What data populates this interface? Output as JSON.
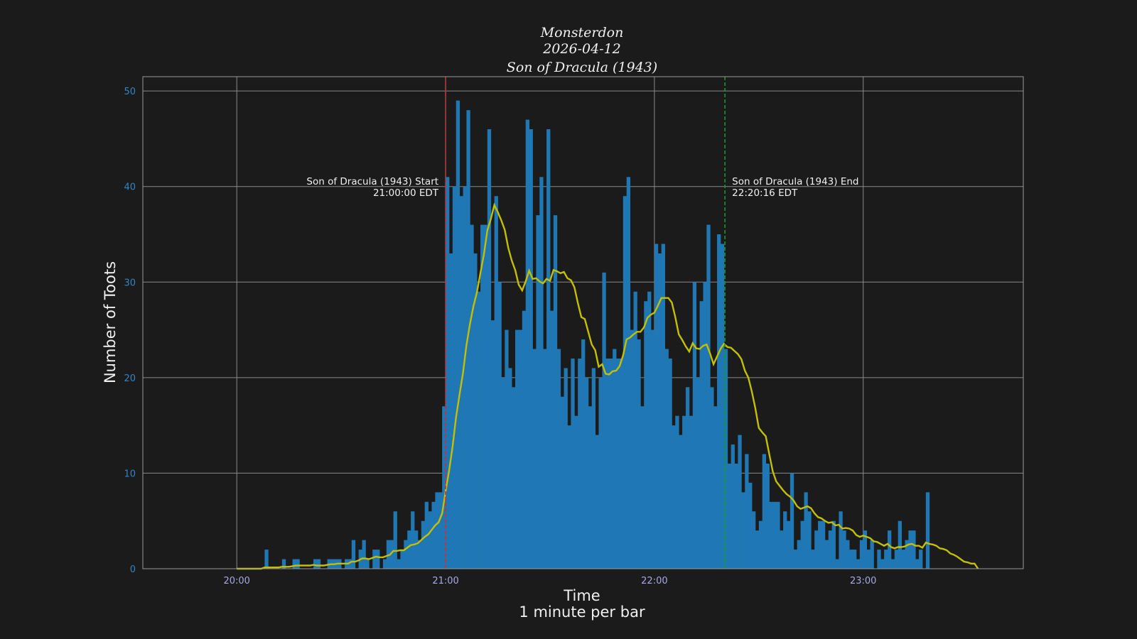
{
  "chart_data": {
    "type": "bar",
    "title_lines": [
      "Monsterdon",
      "2026-04-12",
      "Son of Dracula (1943)"
    ],
    "xlabel": "Time",
    "xlabel_sub": "1 minute per bar",
    "ylabel": "Number of Toots",
    "x_start": "20:08",
    "x_step_minutes": 1,
    "xlim": [
      "19:33",
      "23:46"
    ],
    "ylim": [
      0,
      51.5
    ],
    "x_ticks": [
      "20:00",
      "21:00",
      "22:00",
      "23:00"
    ],
    "y_ticks": [
      0,
      10,
      20,
      30,
      40,
      50
    ],
    "grid": true,
    "values": [
      2,
      0,
      0,
      0,
      0,
      1,
      0,
      0,
      1,
      1,
      0,
      0,
      0,
      0,
      1,
      1,
      0,
      0,
      1,
      1,
      1,
      1,
      0,
      1,
      1,
      3,
      0,
      2,
      3,
      1,
      0,
      2,
      2,
      0,
      1,
      3,
      3,
      6,
      1,
      2,
      3,
      4,
      6,
      4,
      3,
      5,
      7,
      6,
      7,
      8,
      8,
      17,
      41,
      33,
      40,
      49,
      39,
      40,
      48,
      36,
      33,
      29,
      36,
      36,
      46,
      26,
      39,
      30,
      20,
      25,
      21,
      19,
      25,
      25,
      27,
      47,
      46,
      23,
      37,
      41,
      23,
      46,
      27,
      37,
      23,
      18,
      21,
      15,
      22,
      16,
      22,
      24,
      20,
      17,
      21,
      14,
      20,
      31,
      22,
      22,
      23,
      22,
      22,
      39,
      41,
      25,
      29,
      24,
      17,
      28,
      29,
      25,
      34,
      33,
      34,
      23,
      22,
      15,
      16,
      14,
      16,
      19,
      16,
      30,
      20,
      28,
      30,
      36,
      19,
      17,
      35,
      34,
      23,
      11,
      13,
      11,
      14,
      8,
      12,
      9,
      6,
      4,
      5,
      12,
      11,
      7,
      7,
      7,
      4,
      6,
      5,
      10,
      2,
      3,
      5,
      8,
      6,
      2,
      4,
      5,
      5,
      3,
      4,
      5,
      1,
      6,
      4,
      3,
      2,
      2,
      1,
      3,
      4,
      2,
      3,
      0,
      2,
      1,
      2,
      4,
      1,
      2,
      5,
      2,
      3,
      4,
      4,
      1,
      2,
      0,
      8
    ],
    "smoothed_line": {
      "type": "line",
      "description_of_series": "rolling mean"
    },
    "markers": [
      {
        "label": "Son of Dracula (1943) Start",
        "time_label": "21:00:00 EDT",
        "time": "21:00:00",
        "color": "#e0252a"
      },
      {
        "label": "Son of Dracula (1943) End",
        "time_label": "22:20:16 EDT",
        "time": "22:20:16",
        "color": "#1a9a1a"
      }
    ],
    "colors": {
      "background": "#1b1b1b",
      "bars": "#1f77b4",
      "line": "#c4c000",
      "grid": "#8a8a8a"
    }
  }
}
